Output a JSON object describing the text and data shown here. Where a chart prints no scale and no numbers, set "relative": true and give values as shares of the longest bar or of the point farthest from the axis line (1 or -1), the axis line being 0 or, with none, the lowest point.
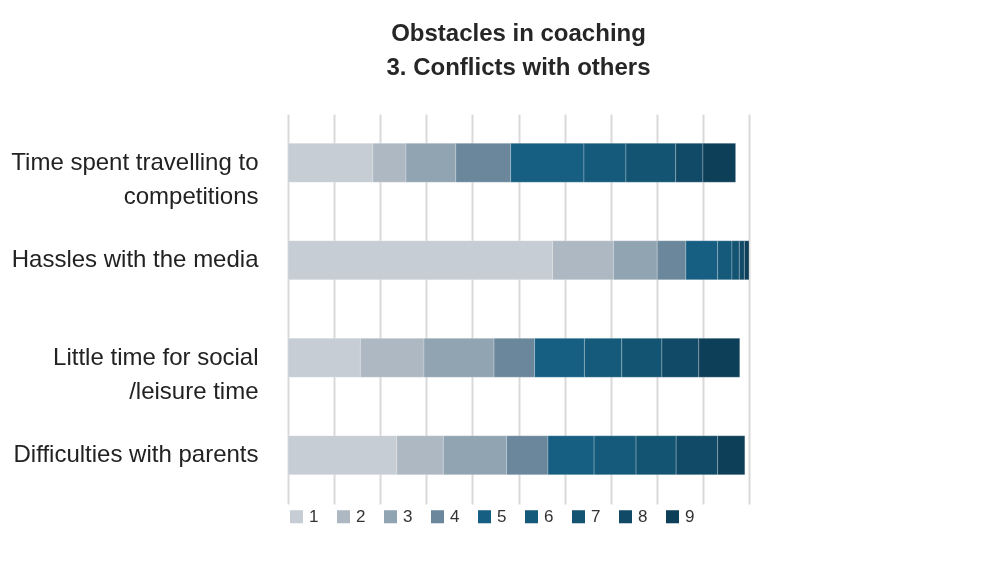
{
  "chart_data": {
    "type": "bar",
    "orientation": "horizontal",
    "stacked": true,
    "relative": true,
    "title": "Obstacles in coaching",
    "subtitle": "3. Conflicts with others",
    "categories": [
      "Time spent travelling to competitions",
      "Hassles with the media",
      "Little time for social /leisure time",
      "Difficulties with parents"
    ],
    "series": [
      {
        "name": "1",
        "color": "#c6cdd5",
        "values": [
          0.184,
          0.574,
          0.157,
          0.236
        ]
      },
      {
        "name": "2",
        "color": "#adb8c2",
        "values": [
          0.072,
          0.132,
          0.138,
          0.101
        ]
      },
      {
        "name": "3",
        "color": "#91a4b2",
        "values": [
          0.108,
          0.095,
          0.152,
          0.137
        ]
      },
      {
        "name": "4",
        "color": "#6b879b",
        "values": [
          0.119,
          0.062,
          0.088,
          0.09
        ]
      },
      {
        "name": "5",
        "color": "#175f82",
        "values": [
          0.159,
          0.069,
          0.108,
          0.1
        ]
      },
      {
        "name": "6",
        "color": "#155a7a",
        "values": [
          0.091,
          0.031,
          0.081,
          0.091
        ]
      },
      {
        "name": "7",
        "color": "#135472",
        "values": [
          0.108,
          0.016,
          0.087,
          0.087
        ]
      },
      {
        "name": "8",
        "color": "#114a67",
        "values": [
          0.059,
          0.011,
          0.08,
          0.09
        ]
      },
      {
        "name": "9",
        "color": "#0e3f58",
        "values": [
          0.071,
          0.01,
          0.089,
          0.059
        ]
      }
    ],
    "grid": "x",
    "legend": "bottom"
  }
}
